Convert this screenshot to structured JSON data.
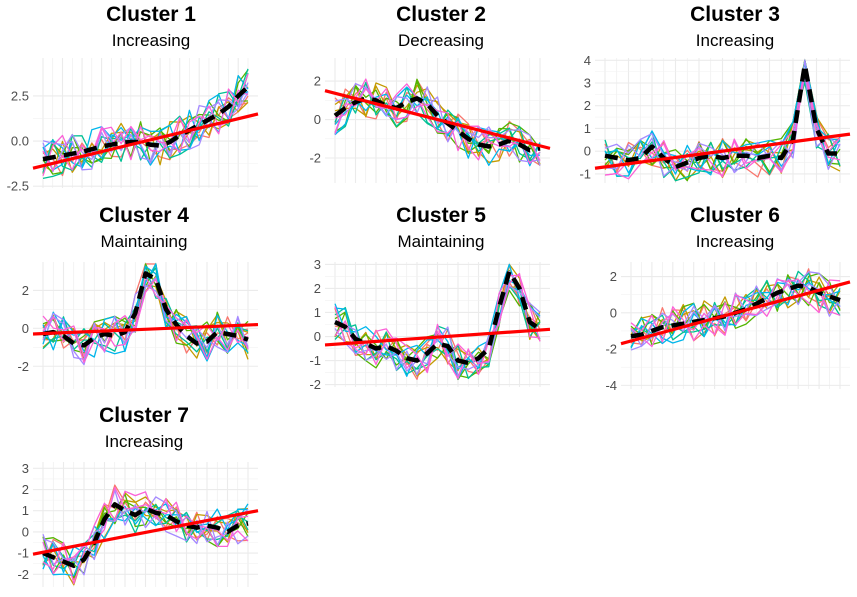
{
  "chart_data": [
    {
      "type": "line",
      "title": "Cluster 1",
      "subtitle": "Increasing",
      "xlabel": "",
      "ylabel": "",
      "ylim": [
        -2.6,
        4.6
      ],
      "yticks": [
        "-2.5",
        "0.0",
        "2.5"
      ],
      "ytick_values": [
        -2.5,
        0.0,
        2.5
      ],
      "grid": true,
      "series_colors": [
        "#F8766D",
        "#C49A00",
        "#53B400",
        "#00C094",
        "#00B6EB",
        "#A58AFF",
        "#FB61D7"
      ],
      "mean_series": [
        -1.0,
        -0.9,
        -0.8,
        -0.7,
        -0.6,
        -0.45,
        -0.3,
        -0.2,
        -0.1,
        -0.05,
        -0.05,
        -0.2,
        -0.25,
        -0.05,
        0.3,
        0.6,
        0.9,
        1.2,
        1.5,
        1.9,
        2.5,
        3.0
      ],
      "trend": [
        -1.5,
        1.5
      ]
    },
    {
      "type": "line",
      "title": "Cluster 2",
      "subtitle": "Decreasing",
      "xlabel": "",
      "ylabel": "",
      "ylim": [
        -3.3,
        3.2
      ],
      "yticks": [
        "-2",
        "0",
        "2"
      ],
      "ytick_values": [
        -2,
        0,
        2
      ],
      "grid": true,
      "series_colors": [
        "#F8766D",
        "#C49A00",
        "#53B400",
        "#00C094",
        "#00B6EB",
        "#A58AFF",
        "#FB61D7"
      ],
      "mean_series": [
        0.2,
        0.6,
        0.9,
        1.1,
        1.0,
        0.7,
        0.6,
        0.9,
        1.1,
        0.8,
        0.2,
        -0.2,
        -0.6,
        -1.0,
        -1.3,
        -1.4,
        -1.3,
        -1.1,
        -1.3,
        -1.6,
        -1.5
      ],
      "trend": [
        1.5,
        -1.5
      ]
    },
    {
      "type": "line",
      "title": "Cluster 3",
      "subtitle": "Increasing",
      "xlabel": "",
      "ylabel": "",
      "ylim": [
        -1.4,
        4.1
      ],
      "yticks": [
        "-1",
        "0",
        "1",
        "2",
        "3",
        "4"
      ],
      "ytick_values": [
        -1,
        0,
        1,
        2,
        3,
        4
      ],
      "grid": true,
      "series_colors": [
        "#F8766D",
        "#C49A00",
        "#53B400",
        "#00C094",
        "#00B6EB",
        "#A58AFF",
        "#FB61D7"
      ],
      "mean_series": [
        -0.2,
        -0.3,
        -0.4,
        -0.3,
        0.2,
        -0.3,
        -0.7,
        -0.5,
        -0.3,
        -0.2,
        -0.3,
        -0.2,
        -0.2,
        -0.3,
        -0.2,
        -0.3,
        0.5,
        3.8,
        1.0,
        -0.1,
        -0.1
      ],
      "trend": [
        -0.75,
        0.75
      ]
    },
    {
      "type": "line",
      "title": "Cluster 4",
      "subtitle": "Maintaining",
      "xlabel": "",
      "ylabel": "",
      "ylim": [
        -3.2,
        3.5
      ],
      "yticks": [
        "-2",
        "0",
        "2"
      ],
      "ytick_values": [
        -2,
        0,
        2
      ],
      "grid": true,
      "series_colors": [
        "#F8766D",
        "#C49A00",
        "#53B400",
        "#00C094",
        "#00B6EB",
        "#A58AFF",
        "#FB61D7"
      ],
      "mean_series": [
        -0.3,
        -0.2,
        -0.4,
        -0.8,
        -0.9,
        -0.5,
        -0.3,
        -0.4,
        -0.2,
        0.8,
        2.9,
        2.6,
        1.0,
        0.2,
        -0.4,
        -0.8,
        -0.7,
        -0.2,
        -0.3,
        -0.4,
        -0.6
      ],
      "trend": [
        -0.3,
        0.2
      ]
    },
    {
      "type": "line",
      "title": "Cluster 5",
      "subtitle": "Maintaining",
      "xlabel": "",
      "ylabel": "",
      "ylim": [
        -2.1,
        3.1
      ],
      "yticks": [
        "-2",
        "-1",
        "0",
        "1",
        "2",
        "3"
      ],
      "ytick_values": [
        -2,
        -1,
        0,
        1,
        2,
        3
      ],
      "grid": true,
      "series_colors": [
        "#F8766D",
        "#C49A00",
        "#53B400",
        "#00C094",
        "#00B6EB",
        "#A58AFF",
        "#FB61D7"
      ],
      "mean_series": [
        0.6,
        0.4,
        -0.1,
        -0.3,
        -0.5,
        -0.4,
        -0.6,
        -0.9,
        -1.0,
        -0.7,
        -0.3,
        -0.4,
        -1.0,
        -1.1,
        -0.9,
        -0.5,
        1.2,
        2.7,
        2.0,
        0.6,
        0.3
      ],
      "trend": [
        -0.35,
        0.3
      ]
    },
    {
      "type": "line",
      "title": "Cluster 6",
      "subtitle": "Increasing",
      "xlabel": "",
      "ylabel": "",
      "ylim": [
        -4.2,
        2.8
      ],
      "yticks": [
        "-4",
        "-2",
        "0",
        "2"
      ],
      "ytick_values": [
        -4,
        -2,
        0,
        2
      ],
      "grid": true,
      "series_colors": [
        "#F8766D",
        "#C49A00",
        "#53B400",
        "#00C094",
        "#00B6EB",
        "#A58AFF",
        "#FB61D7"
      ],
      "mean_series": [
        -1.3,
        -1.2,
        -1.0,
        -0.8,
        -0.7,
        -0.6,
        -0.5,
        -0.4,
        -0.3,
        -0.2,
        0.0,
        0.2,
        0.5,
        0.8,
        1.1,
        1.3,
        1.5,
        1.4,
        1.1,
        0.9,
        0.7
      ],
      "trend": [
        -1.7,
        1.7
      ]
    },
    {
      "type": "line",
      "title": "Cluster 7",
      "subtitle": "Increasing",
      "xlabel": "",
      "ylabel": "",
      "ylim": [
        -2.6,
        3.3
      ],
      "yticks": [
        "-2",
        "-1",
        "0",
        "1",
        "2",
        "3"
      ],
      "ytick_values": [
        -2,
        -1,
        0,
        1,
        2,
        3
      ],
      "grid": true,
      "series_colors": [
        "#F8766D",
        "#C49A00",
        "#53B400",
        "#00C094",
        "#00B6EB",
        "#A58AFF",
        "#FB61D7"
      ],
      "mean_series": [
        -1.0,
        -1.2,
        -1.4,
        -1.6,
        -1.3,
        -0.5,
        0.6,
        1.3,
        1.0,
        0.8,
        1.1,
        0.9,
        0.8,
        0.5,
        0.3,
        0.2,
        0.3,
        0.2,
        0.0,
        0.3,
        0.4
      ],
      "trend": [
        -1.05,
        1.0
      ]
    }
  ]
}
